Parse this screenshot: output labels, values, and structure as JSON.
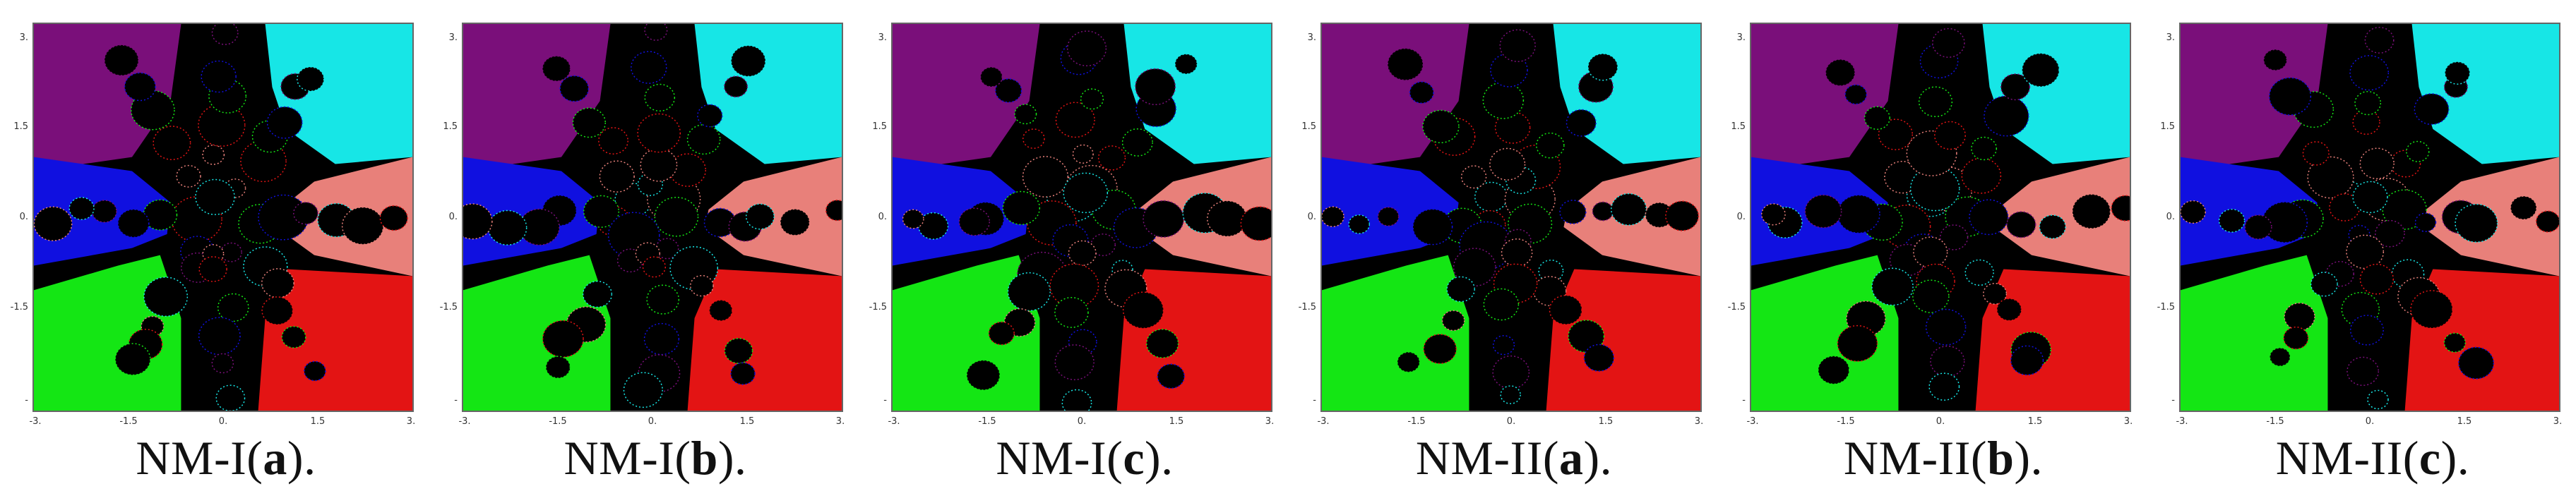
{
  "figure": {
    "panels": [
      {
        "caption_prefix": "NM-I(",
        "caption_letter": "a",
        "caption_suffix": ")."
      },
      {
        "caption_prefix": "NM-I(",
        "caption_letter": "b",
        "caption_suffix": ")."
      },
      {
        "caption_prefix": "NM-I(",
        "caption_letter": "c",
        "caption_suffix": ")."
      },
      {
        "caption_prefix": "NM-II(",
        "caption_letter": "a",
        "caption_suffix": ")."
      },
      {
        "caption_prefix": "NM-II(",
        "caption_letter": "b",
        "caption_suffix": ")."
      },
      {
        "caption_prefix": "NM-II(",
        "caption_letter": "c",
        "caption_suffix": ")."
      }
    ],
    "y_ticks": [
      "3.",
      "1.5",
      "0.",
      "-1.5",
      "-"
    ],
    "x_ticks": [
      "-3.",
      "-1.5",
      "0.",
      "1.5",
      "3."
    ],
    "basin_colors": {
      "top_left": "#7a0f7a",
      "top_right": "#17e6e6",
      "right": "#e8807a",
      "bottom_right": "#e31414",
      "bottom_left": "#14e614",
      "left": "#1010e0",
      "divergence": "#000000"
    }
  }
}
